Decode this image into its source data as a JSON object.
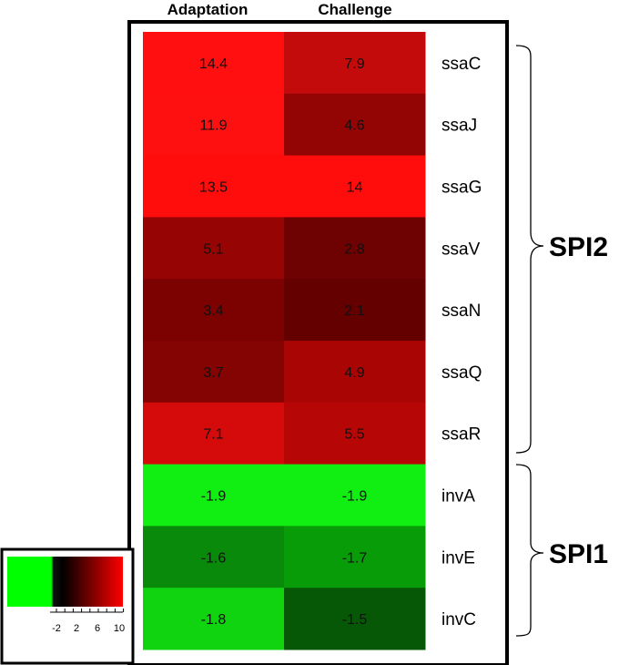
{
  "chart_data": {
    "type": "heatmap",
    "columns": [
      "Adaptation",
      "Challenge"
    ],
    "rows": [
      "ssaC",
      "ssaJ",
      "ssaG",
      "ssaV",
      "ssaN",
      "ssaQ",
      "ssaR",
      "invA",
      "invE",
      "invC"
    ],
    "values": [
      [
        14.4,
        7.9
      ],
      [
        11.9,
        4.6
      ],
      [
        13.5,
        14
      ],
      [
        5.1,
        2.8
      ],
      [
        3.4,
        2.1
      ],
      [
        3.7,
        4.9
      ],
      [
        7.1,
        5.5
      ],
      [
        -1.9,
        -1.9
      ],
      [
        -1.6,
        -1.7
      ],
      [
        -1.8,
        -1.5
      ]
    ],
    "cell_colors": [
      [
        "#ff0f0f",
        "#c40b0b"
      ],
      [
        "#ff1010",
        "#930404"
      ],
      [
        "#ff0d0d",
        "#ff0d0d"
      ],
      [
        "#960404",
        "#6e0101"
      ],
      [
        "#7c0202",
        "#640000"
      ],
      [
        "#840303",
        "#aa0505"
      ],
      [
        "#d50a0a",
        "#b70606"
      ],
      [
        "#11ee11",
        "#11ee11"
      ],
      [
        "#0a8a0a",
        "#089c08"
      ],
      [
        "#11d411",
        "#065806"
      ]
    ],
    "groups": [
      {
        "label": "SPI2",
        "rows": [
          "ssaC",
          "ssaJ",
          "ssaG",
          "ssaV",
          "ssaN",
          "ssaQ",
          "ssaR"
        ]
      },
      {
        "label": "SPI1",
        "rows": [
          "invA",
          "invE",
          "invC"
        ]
      }
    ],
    "colorbar": {
      "ticks": [
        "-2",
        "2",
        "6",
        "10"
      ],
      "colors": [
        "#00ff00",
        "#000000",
        "#ff0000"
      ]
    }
  }
}
